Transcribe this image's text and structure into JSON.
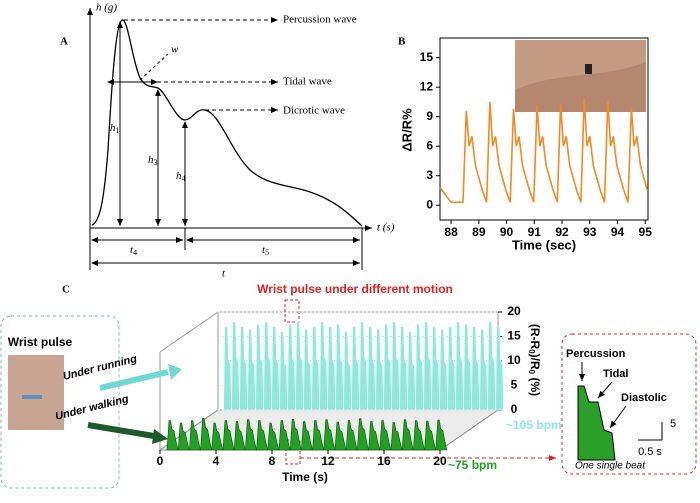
{
  "panel_a": {
    "label": "A",
    "y_axis": "h (g)",
    "x_axis": "t (s)",
    "percussion": "Percussion wave",
    "tidal": "Tidal wave",
    "dicrotic": "Dicrotic wave",
    "w": "w",
    "h1": {
      "base": "h",
      "sub": "1"
    },
    "h3": {
      "base": "h",
      "sub": "3"
    },
    "h4": {
      "base": "h",
      "sub": "4"
    },
    "t4": {
      "base": "t",
      "sub": "4"
    },
    "t5": {
      "base": "t",
      "sub": "5"
    },
    "t": "t"
  },
  "chart_data": [
    {
      "type": "line",
      "panel_label": "B",
      "y_label": "ΔR/R%",
      "x_label": "Time (sec)",
      "color": "#f08a24",
      "xlim": [
        87.6,
        95.1
      ],
      "ylim": [
        -1.5,
        17
      ],
      "xticks": [
        88,
        89,
        90,
        91,
        92,
        93,
        94,
        95
      ],
      "yticks": [
        0,
        3,
        6,
        9,
        12,
        15
      ],
      "x": [
        87.6,
        88.0,
        88.43,
        88.55,
        88.65,
        88.75,
        88.88,
        89.13,
        89.28,
        89.4,
        89.5,
        89.6,
        89.73,
        89.98,
        90.13,
        90.25,
        90.35,
        90.45,
        90.58,
        90.83,
        90.98,
        91.1,
        91.2,
        91.3,
        91.43,
        91.68,
        91.83,
        91.95,
        92.05,
        92.15,
        92.28,
        92.53,
        92.68,
        92.8,
        92.9,
        93.0,
        93.13,
        93.38,
        93.53,
        93.65,
        93.75,
        93.85,
        93.98,
        94.23,
        94.38,
        94.5,
        94.6,
        94.7,
        94.83,
        95.08
      ],
      "values": [
        1.8,
        0.3,
        0.3,
        9.6,
        6,
        7,
        4,
        1.5,
        0.3,
        10.5,
        6,
        7,
        4,
        1.5,
        0.3,
        9.8,
        6,
        7,
        4,
        1.5,
        0.3,
        10.2,
        6,
        7,
        4,
        1.5,
        0.3,
        10.3,
        6,
        7,
        4,
        1.5,
        0.3,
        10.9,
        6,
        7,
        4,
        1.5,
        0.3,
        10.6,
        6,
        7,
        4,
        1.5,
        0.3,
        9.9,
        6,
        7,
        4,
        1.5
      ]
    },
    {
      "type": "waterfall",
      "panel_label": "C",
      "title": "Wrist pulse under different motion",
      "x_label": "Time (s)",
      "y_label": [
        "(R-R",
        "0",
        ")/R",
        "0",
        " (%)"
      ],
      "xlim": [
        0,
        20
      ],
      "ylim": [
        0,
        20
      ],
      "xticks": [
        0,
        4,
        8,
        12,
        16,
        20
      ],
      "yticks": [
        0,
        5,
        10,
        15,
        20
      ],
      "series": [
        {
          "name": "Under running",
          "bpm_label": "~105 bpm",
          "color": "#8ee8dc",
          "x": [
            0.4,
            0.97,
            1.54,
            2.11,
            2.69,
            3.26,
            3.83,
            4.4,
            4.97,
            5.54,
            6.11,
            6.69,
            7.26,
            7.83,
            8.4,
            8.97,
            9.54,
            10.11,
            10.69,
            11.26,
            11.83,
            12.4,
            12.97,
            13.54,
            14.11,
            14.69,
            15.26,
            15.83,
            16.4,
            16.97,
            17.54,
            18.11,
            18.69,
            19.26,
            19.83
          ],
          "values": [
            17,
            18,
            17,
            16.5,
            17.5,
            18,
            17,
            16,
            17.5,
            18,
            16.5,
            17,
            18,
            17,
            17.5,
            16,
            17,
            18,
            17,
            16.5,
            17.5,
            18,
            17,
            16,
            17.5,
            18,
            17,
            16.5,
            17,
            18,
            17.5,
            17,
            16.5,
            18,
            17
          ]
        },
        {
          "name": "Under walking",
          "bpm_label": "~75 bpm",
          "color": "#22a022",
          "x": [
            0.5,
            1.3,
            2.1,
            2.9,
            3.7,
            4.5,
            5.3,
            6.1,
            6.9,
            7.7,
            8.5,
            9.3,
            10.1,
            10.9,
            11.7,
            12.5,
            13.3,
            14.1,
            14.9,
            15.7,
            16.5,
            17.3,
            18.1,
            18.9,
            19.7
          ],
          "values": [
            6,
            5.5,
            6,
            6.5,
            5.5,
            6,
            5.8,
            6.2,
            6,
            5.5,
            6,
            6.3,
            5.8,
            6,
            6.2,
            5.7,
            6,
            6.4,
            5.8,
            6,
            5.6,
            6.2,
            6,
            5.9,
            6.1
          ]
        }
      ]
    }
  ],
  "panel_c": {
    "photo_label": "Wrist pulse",
    "inset": {
      "percussion": "Percussion",
      "tidal": "Tidal",
      "diastolic": "Diastolic",
      "scale_y": "5",
      "scale_x": "0.5 s",
      "caption": "One single beat"
    }
  }
}
